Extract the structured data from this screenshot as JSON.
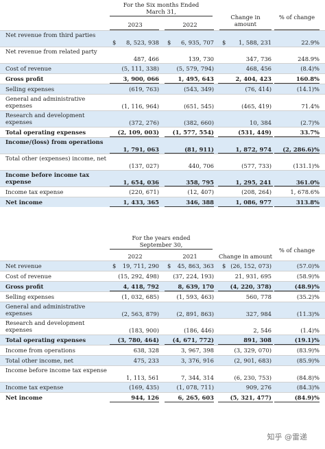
{
  "table1": {
    "header_period": "For the Six  months Ended",
    "header_period2": "March  31,",
    "col_a": "2023",
    "col_b": "2022",
    "col_c": "Change in amount",
    "col_d": "% of change",
    "rows": [
      {
        "label": "Net revenue from third parties",
        "a": "8, 523, 938",
        "b": "6, 935, 707",
        "c": "1, 588, 231",
        "d": "22.9%",
        "dollar": true,
        "bold": false,
        "shade": true
      },
      {
        "label": "Net revenue from related party",
        "a": "487, 466",
        "b": "139, 730",
        "c": "347, 736",
        "d": "248.9%",
        "dollar": false,
        "bold": false,
        "shade": false
      },
      {
        "label": "Cost of revenue",
        "a": "(5, 111, 338)",
        "b": "(5, 579, 794)",
        "c": "468, 456",
        "d": "(8.4)%",
        "dollar": false,
        "bold": false,
        "shade": true
      },
      {
        "label": "Gross profit",
        "a": "3, 900, 066",
        "b": "1, 495, 643",
        "c": "2, 404, 423",
        "d": "160.8%",
        "dollar": false,
        "bold": true,
        "shade": false
      },
      {
        "label": "Selling expenses",
        "a": "(619, 763)",
        "b": "(543, 349)",
        "c": "(76, 414)",
        "d": "(14.1)%",
        "dollar": false,
        "bold": false,
        "shade": true
      },
      {
        "label": "General and administrative expenses",
        "a": "(1, 116, 964)",
        "b": "(651, 545)",
        "c": "(465, 419)",
        "d": "71.4%",
        "dollar": false,
        "bold": false,
        "shade": false
      },
      {
        "label": "Research and development expenses",
        "a": "(372, 276)",
        "b": "(382, 660)",
        "c": "10, 384",
        "d": "(2.7)%",
        "dollar": false,
        "bold": false,
        "shade": true
      },
      {
        "label": "Total operating expenses",
        "a": "(2, 109, 003)",
        "b": "(1, 577, 554)",
        "c": "(531, 449)",
        "d": "33.7%",
        "dollar": false,
        "bold": true,
        "shade": false
      },
      {
        "label": "Income/(loss) from operations",
        "a": "1, 791, 063",
        "b": "(81, 911)",
        "c": "1, 872, 974",
        "d": "(2, 286.6)%",
        "dollar": false,
        "bold": true,
        "shade": true
      },
      {
        "label": "Total other (expenses) income, net",
        "a": "(137, 027)",
        "b": "440, 706",
        "c": "(577, 733)",
        "d": "(131.1)%",
        "dollar": false,
        "bold": false,
        "shade": false
      },
      {
        "label": "Income before income tax expense",
        "a": "1, 654, 036",
        "b": "358, 795",
        "c": "1, 295, 241",
        "d": "361.0%",
        "dollar": false,
        "bold": true,
        "shade": true
      },
      {
        "label": "Income tax expense",
        "a": "(220, 671)",
        "b": "(12, 407)",
        "c": "(208, 264)",
        "d": "1, 678.6%",
        "dollar": false,
        "bold": false,
        "shade": false
      },
      {
        "label": "Net income",
        "a": "1, 433, 365",
        "b": "346, 388",
        "c": "1, 086, 977",
        "d": "313.8%",
        "dollar": false,
        "bold": true,
        "shade": true
      }
    ]
  },
  "table2": {
    "header_period": "For the  years ended",
    "header_period2": "September  30,",
    "col_a": "2022",
    "col_b": "2021",
    "col_c": "Change in amount",
    "col_d": "% of change",
    "rows": [
      {
        "label": "Net revenue",
        "a": "19, 711, 290",
        "b": "45, 863, 363",
        "c": "(26, 152, 073)",
        "d": "(57.0)%",
        "dollar": true,
        "bold": false,
        "shade": true
      },
      {
        "label": "Cost of revenue",
        "a": "(15, 292, 498)",
        "b": "(37, 224, 193)",
        "c": "21, 931, 695",
        "d": "(58.9)%",
        "dollar": false,
        "bold": false,
        "shade": false
      },
      {
        "label": "Gross profit",
        "a": "4, 418, 792",
        "b": "8, 639, 170",
        "c": "(4, 220, 378)",
        "d": "(48.9)%",
        "dollar": false,
        "bold": true,
        "shade": true
      },
      {
        "label": "Selling expenses",
        "a": "(1, 032, 685)",
        "b": "(1, 593, 463)",
        "c": "560, 778",
        "d": "(35.2)%",
        "dollar": false,
        "bold": false,
        "shade": false
      },
      {
        "label": "General and administrative expenses",
        "a": "(2, 563, 879)",
        "b": "(2, 891, 863)",
        "c": "327, 984",
        "d": "(11.3)%",
        "dollar": false,
        "bold": false,
        "shade": true
      },
      {
        "label": "Research and development expenses",
        "a": "(183, 900)",
        "b": "(186, 446)",
        "c": "2, 546",
        "d": "(1.4)%",
        "dollar": false,
        "bold": false,
        "shade": false
      },
      {
        "label": "Total operating expenses",
        "a": "(3, 780, 464)",
        "b": "(4, 671, 772)",
        "c": "891, 308",
        "d": "(19.1)%",
        "dollar": false,
        "bold": true,
        "shade": true
      },
      {
        "label": "Income from operations",
        "a": "638, 328",
        "b": "3, 967, 398",
        "c": "(3, 329, 070)",
        "d": "(83.9)%",
        "dollar": false,
        "bold": false,
        "shade": false
      },
      {
        "label": "Total other income, net",
        "a": "475, 233",
        "b": "3, 376, 916",
        "c": "(2, 901, 683)",
        "d": "(85.9)%",
        "dollar": false,
        "bold": false,
        "shade": true
      },
      {
        "label": "Income before income tax expense",
        "a": "1, 113, 561",
        "b": "7, 344, 314",
        "c": "(6, 230, 753)",
        "d": "(84.8)%",
        "dollar": false,
        "bold": false,
        "shade": false
      },
      {
        "label": "Income tax expense",
        "a": "(169, 435)",
        "b": "(1, 078, 711)",
        "c": "909, 276",
        "d": "(84.3)%",
        "dollar": false,
        "bold": false,
        "shade": true
      },
      {
        "label": "Net income",
        "a": "944, 126",
        "b": "6, 265, 603",
        "c": "(5, 321, 477)",
        "d": "(84.9)%",
        "dollar": false,
        "bold": true,
        "shade": false
      }
    ]
  },
  "dollar_sign": "$",
  "watermark": "知乎 @雷递",
  "accent_shade": "#dbe9f6"
}
